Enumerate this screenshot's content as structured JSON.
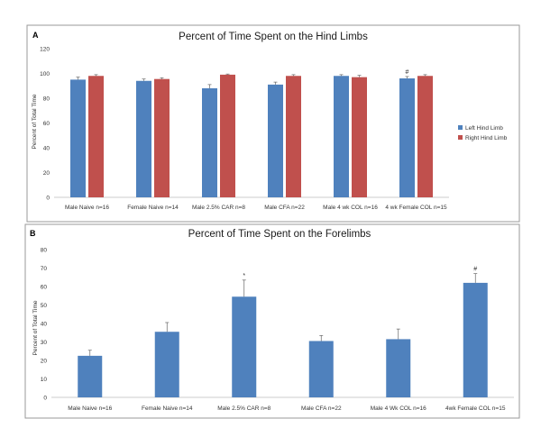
{
  "chart_data": [
    {
      "type": "bar",
      "panel": "A",
      "title": "Percent of Time Spent on the Hind Limbs",
      "ylabel": "Percent of Total Time",
      "xlabel": "",
      "ylim": [
        0,
        120
      ],
      "yticks": [
        0,
        20,
        40,
        60,
        80,
        100,
        120
      ],
      "categories": [
        "Male Naive n=16",
        "Female Naive n=14",
        "Male 2.5% CAR n=8",
        "Male CFA n=22",
        "Male 4 wk COL n=16",
        "4 wk Female COL n=15"
      ],
      "series": [
        {
          "name": "Left Hind Limb",
          "color": "#4f81bd",
          "values": [
            95,
            94,
            88,
            91,
            98,
            96
          ],
          "errors": [
            2,
            1.5,
            3,
            2,
            1,
            1.5
          ]
        },
        {
          "name": "Right Hind Limb",
          "color": "#c0504d",
          "values": [
            98,
            95.5,
            99,
            98,
            97,
            98
          ],
          "errors": [
            1,
            1,
            0.5,
            1,
            1.5,
            1
          ]
        }
      ],
      "annotations": [
        {
          "category_index": 5,
          "series_index": 0,
          "text": "#"
        }
      ],
      "legend": "right"
    },
    {
      "type": "bar",
      "panel": "B",
      "title": "Percent of Time Spent on the Forelimbs",
      "ylabel": "Percent of Total Time",
      "xlabel": "",
      "ylim": [
        0,
        80
      ],
      "yticks": [
        0,
        10,
        20,
        30,
        40,
        50,
        60,
        70,
        80
      ],
      "categories": [
        "Male Naive n=16",
        "Female Naive n=14",
        "Male 2.5% CAR n=8",
        "Male CFA n=22",
        "Male 4 Wk COL n=16",
        "4wk Female COL n=15"
      ],
      "series": [
        {
          "name": "Forelimbs",
          "color": "#4f81bd",
          "values": [
            22.5,
            35.5,
            54.5,
            30.5,
            31.5,
            62
          ],
          "errors": [
            3,
            5,
            9,
            3,
            5.5,
            5
          ]
        }
      ],
      "annotations": [
        {
          "category_index": 2,
          "series_index": 0,
          "text": "*"
        },
        {
          "category_index": 5,
          "series_index": 0,
          "text": "#"
        }
      ],
      "legend": "none"
    }
  ]
}
